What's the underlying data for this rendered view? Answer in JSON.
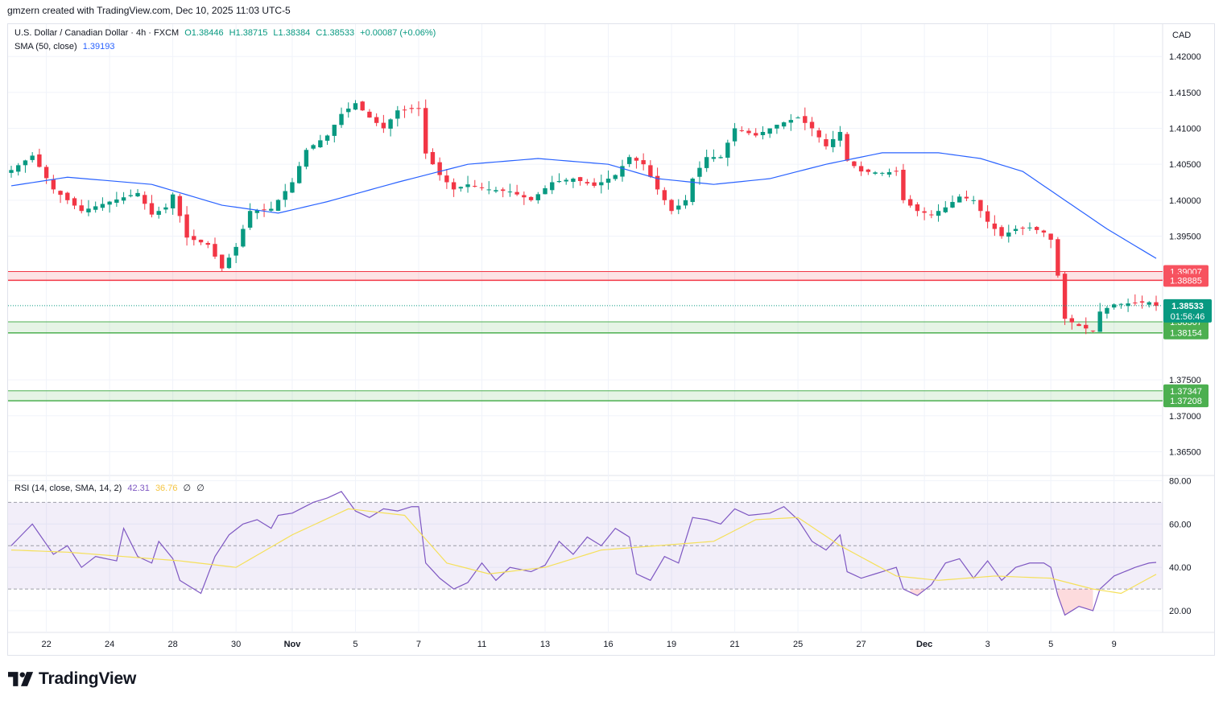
{
  "attribution": "gmzern created with TradingView.com, Dec 10, 2025 11:03 UTC-5",
  "legend": {
    "symbol": "U.S. Dollar / Canadian Dollar · 4h · FXCM",
    "open": "O1.38446",
    "high": "H1.38715",
    "low": "L1.38384",
    "close": "C1.38533",
    "change": "+0.00087 (+0.06%)",
    "sma_label": "SMA (50, close)",
    "sma_value": "1.39193",
    "rsi_label": "RSI (14, close, SMA, 14, 2)",
    "rsi_value": "42.31",
    "rsi_sma_value": "36.76",
    "rsi_extra1": "∅",
    "rsi_extra2": "∅"
  },
  "currency": "CAD",
  "logo_text": "TradingView",
  "colors": {
    "up": "#089981",
    "down": "#f23645",
    "sma": "#2962ff",
    "rsi": "#7e57c2",
    "rsi_sma": "#f5e05a",
    "resistance_zone": "#f23645",
    "support_zone": "#4caf50"
  },
  "chart_data": [
    {
      "type": "candlestick",
      "title": "U.S. Dollar / Canadian Dollar · 4h · FXCM",
      "ylabel": "CAD",
      "ylim": [
        1.3618,
        1.4245
      ],
      "y_ticks": [
        "1.42000",
        "1.41500",
        "1.41000",
        "1.40500",
        "1.40000",
        "1.39500",
        "1.37500",
        "1.37000",
        "1.36500"
      ],
      "x_ticks": [
        "22",
        "24",
        "28",
        "30",
        "Nov",
        "5",
        "7",
        "11",
        "13",
        "16",
        "19",
        "21",
        "25",
        "27",
        "Dec",
        "3",
        "5",
        "9"
      ],
      "x_tick_bar_index": [
        5,
        14,
        23,
        32,
        40,
        49,
        58,
        67,
        76,
        85,
        94,
        103,
        112,
        121,
        130,
        139,
        148,
        157
      ],
      "bar_count": 164,
      "close_anchors": [
        [
          0,
          1.4042
        ],
        [
          3,
          1.4062
        ],
        [
          6,
          1.4015
        ],
        [
          10,
          1.3985
        ],
        [
          14,
          1.3998
        ],
        [
          18,
          1.401
        ],
        [
          20,
          1.398
        ],
        [
          22,
          1.399
        ],
        [
          23,
          1.4008
        ],
        [
          25,
          1.3948
        ],
        [
          28,
          1.3938
        ],
        [
          30,
          1.3905
        ],
        [
          32,
          1.3935
        ],
        [
          34,
          1.3985
        ],
        [
          37,
          1.3988
        ],
        [
          40,
          1.4025
        ],
        [
          42,
          1.407
        ],
        [
          45,
          1.409
        ],
        [
          47,
          1.412
        ],
        [
          49,
          1.4135
        ],
        [
          51,
          1.4115
        ],
        [
          53,
          1.41
        ],
        [
          55,
          1.4125
        ],
        [
          58,
          1.4128
        ],
        [
          59,
          1.4065
        ],
        [
          61,
          1.4035
        ],
        [
          63,
          1.4015
        ],
        [
          65,
          1.4022
        ],
        [
          68,
          1.4015
        ],
        [
          71,
          1.4012
        ],
        [
          74,
          1.4
        ],
        [
          77,
          1.4025
        ],
        [
          80,
          1.403
        ],
        [
          83,
          1.402
        ],
        [
          86,
          1.4035
        ],
        [
          88,
          1.406
        ],
        [
          90,
          1.405
        ],
        [
          92,
          1.4015
        ],
        [
          94,
          1.3985
        ],
        [
          96,
          1.4
        ],
        [
          97,
          1.403
        ],
        [
          99,
          1.406
        ],
        [
          101,
          1.406
        ],
        [
          103,
          1.41
        ],
        [
          106,
          1.409
        ],
        [
          109,
          1.4105
        ],
        [
          112,
          1.4115
        ],
        [
          114,
          1.41
        ],
        [
          116,
          1.4075
        ],
        [
          118,
          1.4095
        ],
        [
          119,
          1.4055
        ],
        [
          121,
          1.404
        ],
        [
          124,
          1.4038
        ],
        [
          126,
          1.404
        ],
        [
          127,
          1.4
        ],
        [
          129,
          1.3985
        ],
        [
          131,
          1.398
        ],
        [
          133,
          1.399
        ],
        [
          135,
          1.4005
        ],
        [
          137,
          1.4
        ],
        [
          139,
          1.397
        ],
        [
          141,
          1.395
        ],
        [
          143,
          1.396
        ],
        [
          145,
          1.3962
        ],
        [
          147,
          1.3955
        ],
        [
          148,
          1.3945
        ],
        [
          149,
          1.3895
        ],
        [
          150,
          1.3835
        ],
        [
          152,
          1.3825
        ],
        [
          154,
          1.3818
        ],
        [
          155,
          1.3845
        ],
        [
          157,
          1.3855
        ],
        [
          160,
          1.3857
        ],
        [
          162,
          1.3858
        ],
        [
          163,
          1.3853
        ]
      ],
      "sma_50": [
        [
          0,
          1.402
        ],
        [
          8,
          1.4032
        ],
        [
          20,
          1.4022
        ],
        [
          30,
          1.3993
        ],
        [
          38,
          1.3982
        ],
        [
          45,
          1.3998
        ],
        [
          55,
          1.4025
        ],
        [
          65,
          1.405
        ],
        [
          75,
          1.4058
        ],
        [
          85,
          1.405
        ],
        [
          92,
          1.403
        ],
        [
          100,
          1.4022
        ],
        [
          108,
          1.403
        ],
        [
          116,
          1.405
        ],
        [
          124,
          1.4066
        ],
        [
          132,
          1.4066
        ],
        [
          138,
          1.4058
        ],
        [
          144,
          1.404
        ],
        [
          150,
          1.4
        ],
        [
          156,
          1.396
        ],
        [
          163,
          1.3919
        ]
      ],
      "zones": [
        {
          "kind": "resistance",
          "low": 1.38885,
          "high": 1.39007,
          "labels": [
            "1.39007",
            "1.38885"
          ]
        },
        {
          "kind": "support",
          "low": 1.38154,
          "high": 1.38307,
          "labels": [
            "1.38307",
            "1.38154"
          ]
        },
        {
          "kind": "support",
          "low": 1.37208,
          "high": 1.37347,
          "labels": [
            "1.37347",
            "1.37208"
          ]
        }
      ],
      "last_price": 1.38533,
      "last_price_label": "1.38533",
      "countdown": "01:56:46"
    },
    {
      "type": "line",
      "title": "RSI (14, close, SMA, 14, 2)",
      "ylim": [
        10,
        82
      ],
      "y_ticks": [
        "80.00",
        "60.00",
        "40.00",
        "20.00"
      ],
      "bands": {
        "upper": 70,
        "middle": 50,
        "lower": 30
      },
      "rsi_anchors": [
        [
          0,
          50
        ],
        [
          3,
          60
        ],
        [
          6,
          46
        ],
        [
          8,
          50
        ],
        [
          10,
          40
        ],
        [
          12,
          45
        ],
        [
          15,
          43
        ],
        [
          16,
          58
        ],
        [
          18,
          45
        ],
        [
          20,
          42
        ],
        [
          21,
          52
        ],
        [
          23,
          44
        ],
        [
          24,
          34
        ],
        [
          27,
          28
        ],
        [
          29,
          45
        ],
        [
          31,
          55
        ],
        [
          33,
          60
        ],
        [
          35,
          62
        ],
        [
          37,
          58
        ],
        [
          38,
          64
        ],
        [
          40,
          65
        ],
        [
          43,
          70
        ],
        [
          45,
          72
        ],
        [
          47,
          75
        ],
        [
          49,
          66
        ],
        [
          51,
          63
        ],
        [
          53,
          67
        ],
        [
          55,
          66
        ],
        [
          57,
          68
        ],
        [
          58,
          68
        ],
        [
          59,
          42
        ],
        [
          61,
          35
        ],
        [
          63,
          30
        ],
        [
          65,
          33
        ],
        [
          67,
          42
        ],
        [
          69,
          34
        ],
        [
          71,
          40
        ],
        [
          74,
          38
        ],
        [
          76,
          41
        ],
        [
          78,
          52
        ],
        [
          80,
          46
        ],
        [
          82,
          54
        ],
        [
          84,
          50
        ],
        [
          86,
          58
        ],
        [
          88,
          54
        ],
        [
          89,
          37
        ],
        [
          91,
          34
        ],
        [
          93,
          45
        ],
        [
          95,
          42
        ],
        [
          97,
          63
        ],
        [
          99,
          62
        ],
        [
          101,
          60
        ],
        [
          103,
          67
        ],
        [
          105,
          64
        ],
        [
          108,
          65
        ],
        [
          110,
          68
        ],
        [
          112,
          62
        ],
        [
          114,
          52
        ],
        [
          116,
          48
        ],
        [
          118,
          55
        ],
        [
          119,
          38
        ],
        [
          121,
          35
        ],
        [
          124,
          38
        ],
        [
          126,
          40
        ],
        [
          127,
          30
        ],
        [
          129,
          27
        ],
        [
          131,
          32
        ],
        [
          133,
          42
        ],
        [
          135,
          44
        ],
        [
          137,
          35
        ],
        [
          139,
          43
        ],
        [
          141,
          34
        ],
        [
          143,
          40
        ],
        [
          145,
          42
        ],
        [
          147,
          42
        ],
        [
          148,
          40
        ],
        [
          149,
          27
        ],
        [
          150,
          18
        ],
        [
          152,
          22
        ],
        [
          154,
          20
        ],
        [
          155,
          30
        ],
        [
          157,
          36
        ],
        [
          160,
          40
        ],
        [
          162,
          42
        ],
        [
          163,
          42.3
        ]
      ],
      "rsi_sma_anchors": [
        [
          0,
          48
        ],
        [
          8,
          47
        ],
        [
          16,
          45
        ],
        [
          24,
          43
        ],
        [
          32,
          40
        ],
        [
          40,
          55
        ],
        [
          48,
          67
        ],
        [
          56,
          64
        ],
        [
          62,
          42
        ],
        [
          68,
          37
        ],
        [
          76,
          40
        ],
        [
          84,
          48
        ],
        [
          92,
          50
        ],
        [
          100,
          52
        ],
        [
          106,
          62
        ],
        [
          112,
          63
        ],
        [
          118,
          50
        ],
        [
          126,
          36
        ],
        [
          132,
          34
        ],
        [
          140,
          36
        ],
        [
          148,
          35
        ],
        [
          154,
          30
        ],
        [
          158,
          28
        ],
        [
          163,
          36.8
        ]
      ]
    }
  ]
}
